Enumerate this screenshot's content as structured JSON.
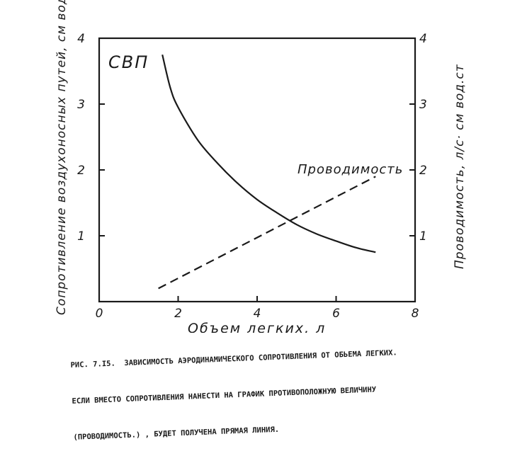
{
  "chart_data": {
    "type": "line",
    "xlabel": "Объем легких, л",
    "ylabel_left": "Сопротивление воздухоносных путей, см вод.ст./л.с.",
    "ylabel_right": "Проводимость, л/с· см вод.ст",
    "x_ticks": [
      "0",
      "2",
      "4",
      "6",
      "8"
    ],
    "y_ticks_left": [
      "1",
      "2",
      "3",
      "4"
    ],
    "y_ticks_right": [
      "1",
      "2",
      "3",
      "4"
    ],
    "xlim": [
      0,
      8
    ],
    "ylim": [
      0,
      4
    ],
    "grid": false,
    "series": [
      {
        "name": "СВП",
        "style": "solid",
        "x": [
          1.6,
          1.8,
          2.0,
          2.5,
          3.0,
          3.5,
          4.0,
          4.5,
          5.0,
          5.5,
          6.0,
          6.5,
          7.0
        ],
        "y": [
          3.75,
          3.25,
          2.95,
          2.45,
          2.1,
          1.8,
          1.55,
          1.35,
          1.17,
          1.03,
          0.92,
          0.82,
          0.75
        ]
      },
      {
        "name": "Проводимость",
        "style": "dashed",
        "x": [
          1.5,
          7.0
        ],
        "y": [
          0.2,
          1.9
        ]
      }
    ]
  },
  "caption": {
    "lines": [
      "РИС. 7.I5.  ЗАВИСИМОСТЬ АЭРОДИНАМИЧЕСКОГО СОПРОТИВЛЕНИЯ ОТ ОБЬЕМА ЛЕГКИХ.",
      "ЕСЛИ ВМЕСТО СОПРОТИВЛЕНИЯ НАНЕСТИ НА ГРАФИК ПРОТИВОПОЛОЖНУЮ ВЕЛИЧИНУ",
      "(ПРОВОДИМОСТЬ.) , БУДЕТ ПОЛУЧЕНА ПРЯМАЯ ЛИНИЯ."
    ]
  }
}
